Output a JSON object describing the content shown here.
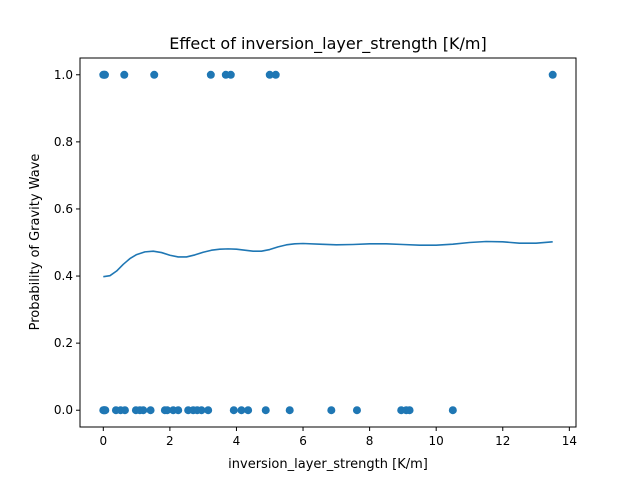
{
  "chart_data": {
    "type": "scatter",
    "title": "Effect of inversion_layer_strength [K/m]",
    "xlabel": "inversion_layer_strength [K/m]",
    "ylabel": "Probability of Gravity Wave",
    "xlim": [
      -0.7,
      14.2
    ],
    "ylim": [
      -0.05,
      1.05
    ],
    "xticks": [
      0,
      2,
      4,
      6,
      8,
      10,
      12,
      14
    ],
    "yticks": [
      0.0,
      0.2,
      0.4,
      0.6,
      0.8,
      1.0
    ],
    "xtick_labels": [
      "0",
      "2",
      "4",
      "6",
      "8",
      "10",
      "12",
      "14"
    ],
    "ytick_labels": [
      "0.0",
      "0.2",
      "0.4",
      "0.6",
      "0.8",
      "1.0"
    ],
    "grid": false,
    "color": "#1f77b4",
    "series": [
      {
        "type": "scatter",
        "points": [
          {
            "x": 0.0,
            "y": 1
          },
          {
            "x": 0.03,
            "y": 1
          },
          {
            "x": 0.05,
            "y": 1
          },
          {
            "x": 0.63,
            "y": 1
          },
          {
            "x": 1.53,
            "y": 1
          },
          {
            "x": 3.23,
            "y": 1
          },
          {
            "x": 3.68,
            "y": 1
          },
          {
            "x": 3.83,
            "y": 1
          },
          {
            "x": 5.0,
            "y": 1
          },
          {
            "x": 5.18,
            "y": 1
          },
          {
            "x": 13.5,
            "y": 1
          },
          {
            "x": 0.0,
            "y": 0
          },
          {
            "x": 0.02,
            "y": 0
          },
          {
            "x": 0.04,
            "y": 0
          },
          {
            "x": 0.06,
            "y": 0
          },
          {
            "x": 0.38,
            "y": 0
          },
          {
            "x": 0.52,
            "y": 0
          },
          {
            "x": 0.65,
            "y": 0
          },
          {
            "x": 0.98,
            "y": 0
          },
          {
            "x": 1.1,
            "y": 0
          },
          {
            "x": 1.2,
            "y": 0
          },
          {
            "x": 1.42,
            "y": 0
          },
          {
            "x": 1.85,
            "y": 0
          },
          {
            "x": 1.92,
            "y": 0
          },
          {
            "x": 2.1,
            "y": 0
          },
          {
            "x": 2.25,
            "y": 0
          },
          {
            "x": 2.55,
            "y": 0
          },
          {
            "x": 2.7,
            "y": 0
          },
          {
            "x": 2.82,
            "y": 0
          },
          {
            "x": 2.95,
            "y": 0
          },
          {
            "x": 3.15,
            "y": 0
          },
          {
            "x": 3.92,
            "y": 0
          },
          {
            "x": 4.15,
            "y": 0
          },
          {
            "x": 4.35,
            "y": 0
          },
          {
            "x": 4.88,
            "y": 0
          },
          {
            "x": 5.6,
            "y": 0
          },
          {
            "x": 6.85,
            "y": 0
          },
          {
            "x": 7.62,
            "y": 0
          },
          {
            "x": 8.95,
            "y": 0
          },
          {
            "x": 9.1,
            "y": 0
          },
          {
            "x": 9.2,
            "y": 0
          },
          {
            "x": 10.5,
            "y": 0
          }
        ]
      },
      {
        "type": "line",
        "x": [
          0.0,
          0.2,
          0.4,
          0.6,
          0.8,
          1.0,
          1.25,
          1.5,
          1.75,
          2.0,
          2.25,
          2.5,
          2.75,
          3.0,
          3.25,
          3.5,
          3.75,
          4.0,
          4.25,
          4.5,
          4.75,
          5.0,
          5.25,
          5.5,
          5.75,
          6.0,
          6.5,
          7.0,
          7.5,
          8.0,
          8.5,
          9.0,
          9.5,
          10.0,
          10.5,
          11.0,
          11.5,
          12.0,
          12.5,
          13.0,
          13.5
        ],
        "y": [
          0.398,
          0.401,
          0.415,
          0.435,
          0.452,
          0.464,
          0.472,
          0.474,
          0.47,
          0.462,
          0.457,
          0.457,
          0.463,
          0.471,
          0.477,
          0.48,
          0.481,
          0.48,
          0.477,
          0.474,
          0.474,
          0.479,
          0.487,
          0.493,
          0.496,
          0.497,
          0.495,
          0.493,
          0.494,
          0.496,
          0.496,
          0.494,
          0.492,
          0.492,
          0.495,
          0.5,
          0.503,
          0.502,
          0.498,
          0.498,
          0.502
        ]
      }
    ]
  }
}
